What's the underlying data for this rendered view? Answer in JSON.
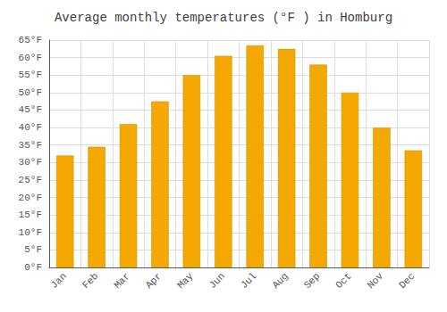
{
  "chart_data": {
    "type": "bar",
    "title": "Average monthly temperatures (°F ) in Homburg",
    "categories": [
      "Jan",
      "Feb",
      "Mar",
      "Apr",
      "May",
      "Jun",
      "Jul",
      "Aug",
      "Sep",
      "Oct",
      "Nov",
      "Dec"
    ],
    "values": [
      32,
      34.5,
      41,
      47.5,
      55,
      60.5,
      63.5,
      62.5,
      58,
      50,
      40,
      33.5
    ],
    "color": "#F5A800",
    "ylim": [
      0,
      65
    ],
    "yticks": [
      {
        "value": 0,
        "label": "0°F"
      },
      {
        "value": 5,
        "label": "5°F"
      },
      {
        "value": 10,
        "label": "10°F"
      },
      {
        "value": 15,
        "label": "15°F"
      },
      {
        "value": 20,
        "label": "20°F"
      },
      {
        "value": 25,
        "label": "25°F"
      },
      {
        "value": 30,
        "label": "30°F"
      },
      {
        "value": 35,
        "label": "35°F"
      },
      {
        "value": 40,
        "label": "40°F"
      },
      {
        "value": 45,
        "label": "45°F"
      },
      {
        "value": 50,
        "label": "50°F"
      },
      {
        "value": 55,
        "label": "55°F"
      },
      {
        "value": 60,
        "label": "60°F"
      },
      {
        "value": 65,
        "label": "65°F"
      }
    ],
    "grid": true
  }
}
